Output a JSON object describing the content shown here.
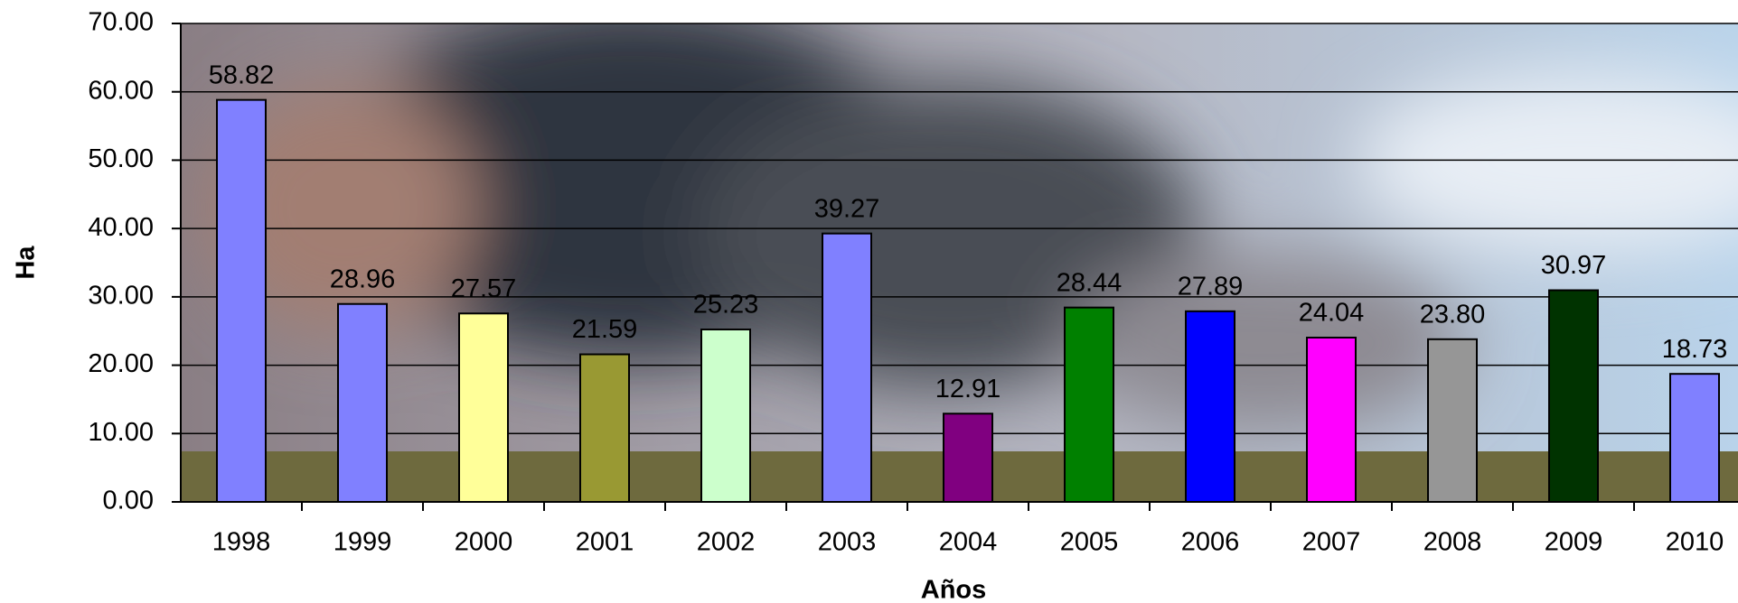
{
  "chart_data": {
    "type": "bar",
    "x_label": "Años",
    "y_label": "Ha",
    "categories": [
      "1998",
      "1999",
      "2000",
      "2001",
      "2002",
      "2003",
      "2004",
      "2005",
      "2006",
      "2007",
      "2008",
      "2009",
      "2010"
    ],
    "values": [
      58.82,
      28.96,
      27.57,
      21.59,
      25.23,
      39.27,
      12.91,
      28.44,
      27.89,
      24.04,
      23.8,
      30.97,
      18.73
    ],
    "value_labels": [
      "58.82",
      "28.96",
      "27.57",
      "21.59",
      "25.23",
      "39.27",
      "12.91",
      "28.44",
      "27.89",
      "24.04",
      "23.80",
      "30.97",
      "18.73"
    ],
    "colors": [
      "#8080ff",
      "#8080ff",
      "#ffff99",
      "#999933",
      "#ccffcc",
      "#8080ff",
      "#800080",
      "#008000",
      "#0000ff",
      "#ff00ff",
      "#969696",
      "#003300",
      "#8080ff"
    ],
    "ylim": [
      0,
      70
    ],
    "yticks": [
      {
        "value": 0,
        "label": "0.00"
      },
      {
        "value": 10,
        "label": "10.00"
      },
      {
        "value": 20,
        "label": "20.00"
      },
      {
        "value": 30,
        "label": "30.00"
      },
      {
        "value": 40,
        "label": "40.00"
      },
      {
        "value": 50,
        "label": "50.00"
      },
      {
        "value": 60,
        "label": "60.00"
      },
      {
        "value": 70,
        "label": "70.00"
      }
    ],
    "grid": true
  }
}
